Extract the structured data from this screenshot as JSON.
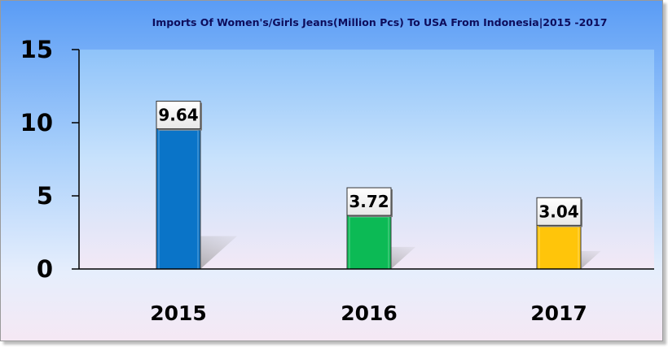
{
  "chart_data": {
    "type": "bar",
    "title": "Imports Of Women's/Girls Jeans(Million Pcs) To USA From Indonesia|2015 -2017",
    "categories": [
      "2015",
      "2016",
      "2017"
    ],
    "values": [
      9.64,
      3.72,
      3.04
    ],
    "data_labels": [
      "9.64",
      "3.72",
      "3.04"
    ],
    "ylim": [
      0,
      15
    ],
    "yticks": [
      0,
      5,
      10,
      15
    ],
    "ytick_labels": [
      "0",
      "5",
      "10",
      "15"
    ],
    "bar_colors": [
      "#0a74c8",
      "#0cba55",
      "#ffc50a"
    ],
    "grid": false,
    "legend": "none"
  }
}
